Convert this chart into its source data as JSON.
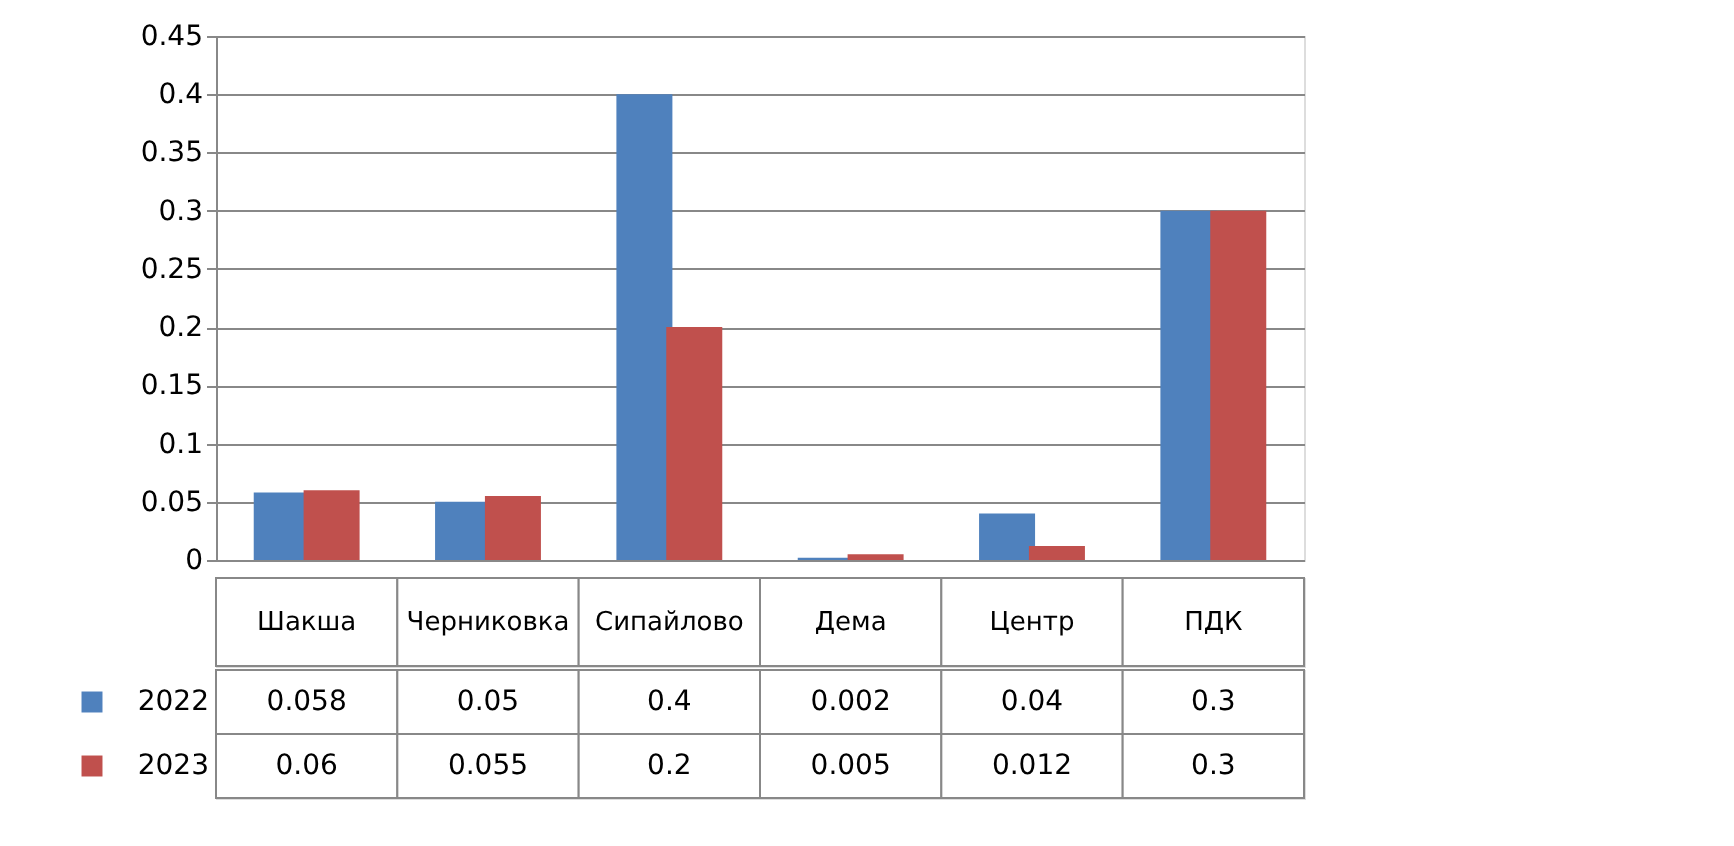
{
  "chart_data": {
    "type": "bar",
    "categories": [
      "Шакша",
      "Черниковка",
      "Сипайлово",
      "Дема",
      "Центр",
      "ПДК"
    ],
    "series": [
      {
        "name": "2022",
        "color": "#4f81bd",
        "values": [
          0.058,
          0.05,
          0.4,
          0.002,
          0.04,
          0.3
        ]
      },
      {
        "name": "2023",
        "color": "#c0504d",
        "values": [
          0.06,
          0.055,
          0.2,
          0.005,
          0.012,
          0.3
        ]
      }
    ],
    "ylim": [
      0,
      0.45
    ],
    "yticks": [
      0,
      0.05,
      0.1,
      0.15,
      0.2,
      0.25,
      0.3,
      0.35,
      0.4,
      0.45
    ],
    "grid": "y",
    "legend": "bottom",
    "data_labels": true
  }
}
